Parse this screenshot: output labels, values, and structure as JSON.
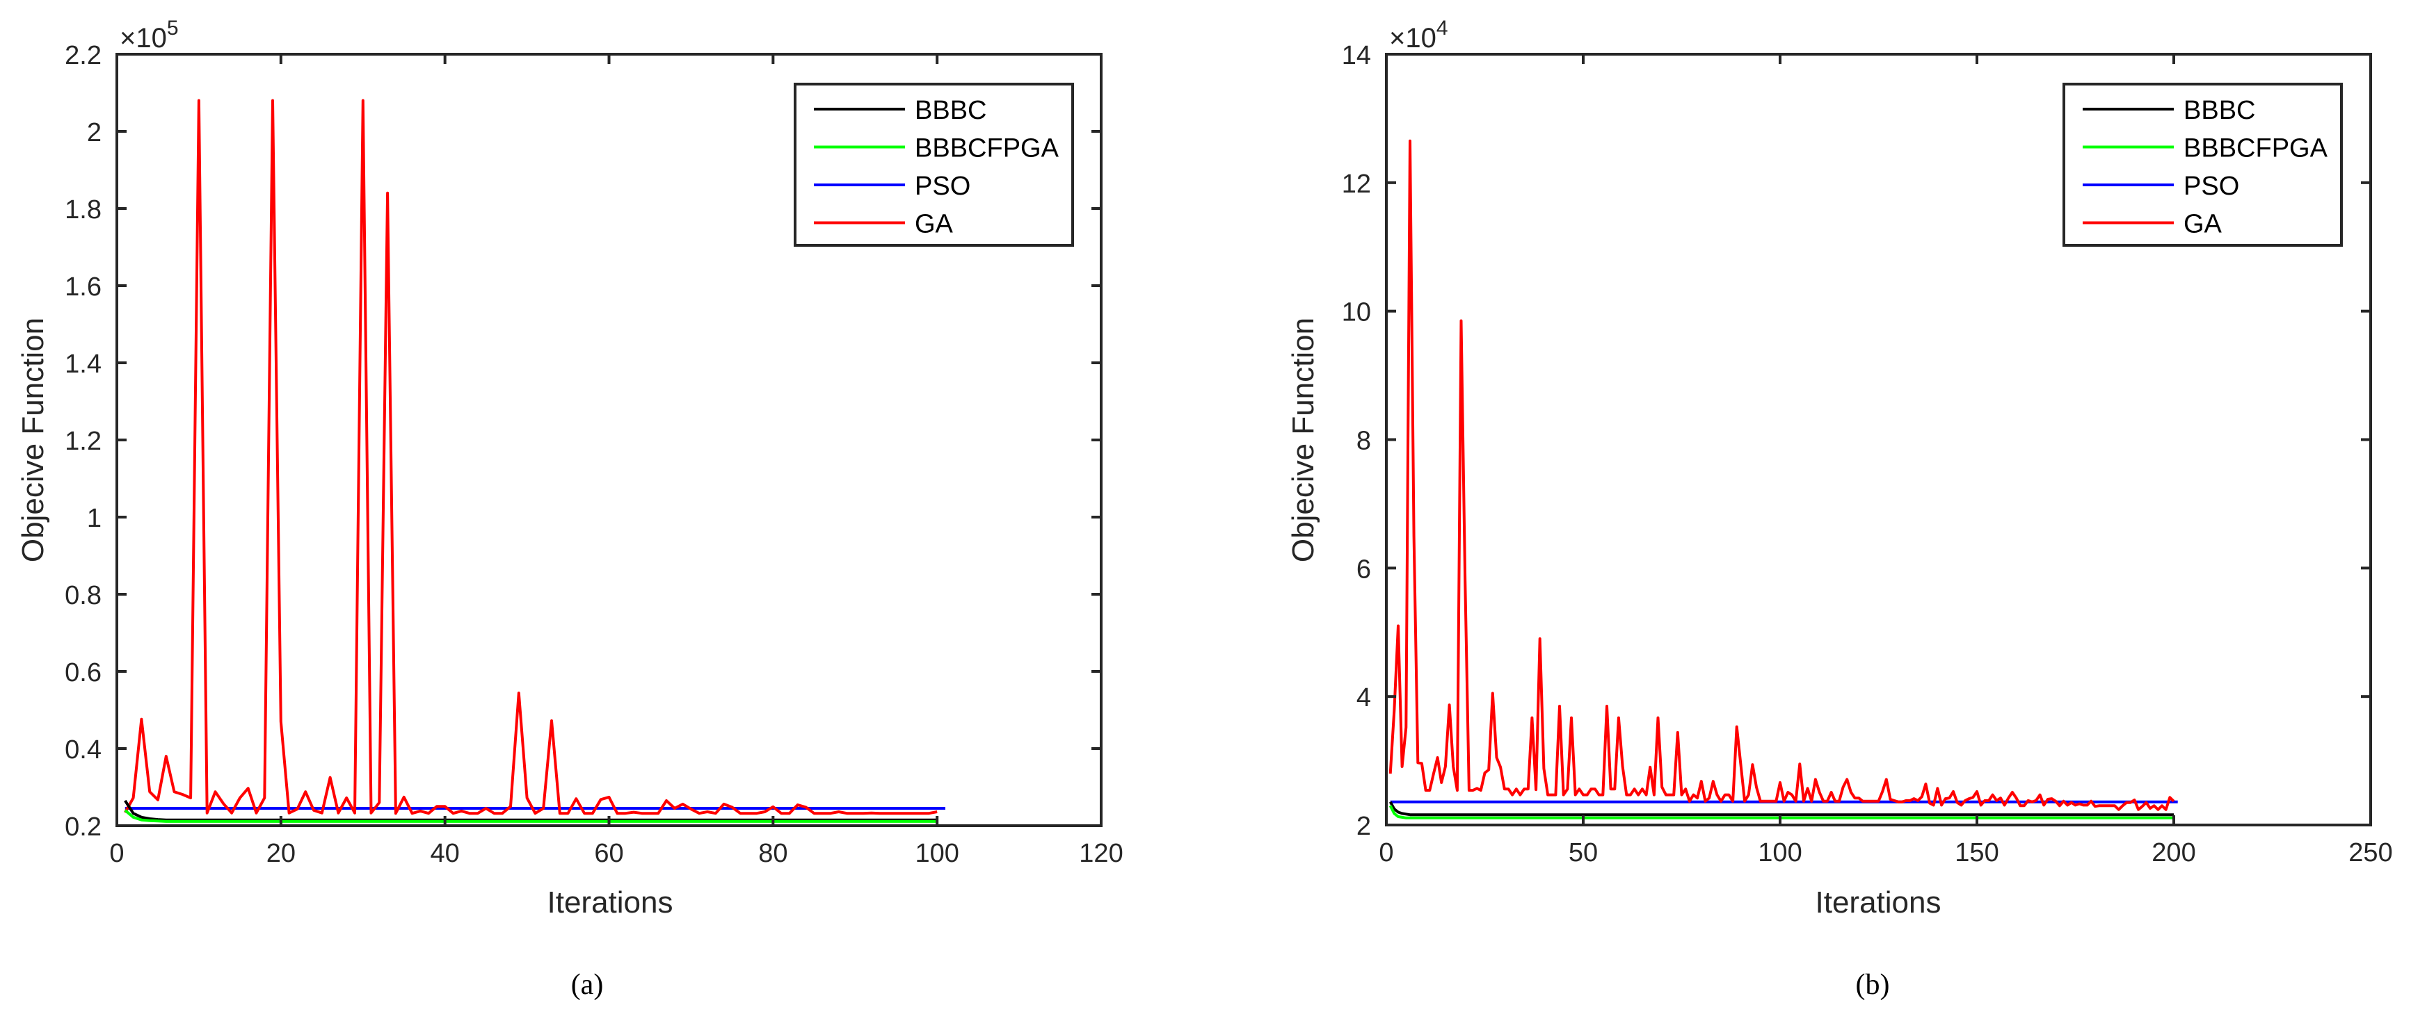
{
  "figure": {
    "captions": [
      "(a)",
      "(b)"
    ]
  },
  "chart_data": [
    {
      "type": "line",
      "panel_label": "(a)",
      "title": "",
      "xlabel": "Iterations",
      "ylabel": "Objecive Function",
      "y_exponent_label": "×10",
      "y_exponent": "5",
      "xlim": [
        0,
        120
      ],
      "ylim": [
        0.2,
        2.2
      ],
      "xticks": [
        0,
        20,
        40,
        60,
        80,
        100,
        120
      ],
      "yticks": [
        0.2,
        0.4,
        0.6,
        0.8,
        1,
        1.2,
        1.4,
        1.6,
        1.8,
        2,
        2.2
      ],
      "ytick_labels": [
        "0.2",
        "0.4",
        "0.6",
        "0.8",
        "1",
        "1.2",
        "1.4",
        "1.6",
        "1.8",
        "2",
        "2.2"
      ],
      "grid": false,
      "legend_position": "northeast",
      "series": [
        {
          "name": "BBBC",
          "color": "#000000",
          "x_start": 1,
          "values": [
            0.265,
            0.232,
            0.222,
            0.218,
            0.216,
            0.215,
            0.215,
            0.215,
            0.215,
            0.215,
            0.215,
            0.215,
            0.215,
            0.215,
            0.215,
            0.215,
            0.215,
            0.215,
            0.215,
            0.215,
            0.215,
            0.215,
            0.215,
            0.215,
            0.215,
            0.215,
            0.215,
            0.215,
            0.215,
            0.215,
            0.215,
            0.215,
            0.215,
            0.215,
            0.215,
            0.215,
            0.215,
            0.215,
            0.215,
            0.215,
            0.215,
            0.215,
            0.215,
            0.215,
            0.215,
            0.215,
            0.215,
            0.215,
            0.215,
            0.215,
            0.215,
            0.215,
            0.215,
            0.215,
            0.215,
            0.215,
            0.215,
            0.215,
            0.215,
            0.215,
            0.215,
            0.215,
            0.215,
            0.215,
            0.215,
            0.215,
            0.215,
            0.215,
            0.215,
            0.215,
            0.215,
            0.215,
            0.215,
            0.215,
            0.215,
            0.215,
            0.215,
            0.215,
            0.215,
            0.215,
            0.215,
            0.215,
            0.215,
            0.215,
            0.215,
            0.215,
            0.215,
            0.215,
            0.215,
            0.215,
            0.215,
            0.215,
            0.215,
            0.215,
            0.215,
            0.215,
            0.215,
            0.215,
            0.215,
            0.215
          ]
        },
        {
          "name": "BBBCFPGA",
          "color": "#00ff00",
          "x_start": 1,
          "values": [
            0.24,
            0.222,
            0.215,
            0.213,
            0.212,
            0.211,
            0.211,
            0.211,
            0.211,
            0.211,
            0.211,
            0.211,
            0.211,
            0.211,
            0.211,
            0.211,
            0.211,
            0.211,
            0.211,
            0.211,
            0.211,
            0.211,
            0.211,
            0.211,
            0.211,
            0.211,
            0.211,
            0.211,
            0.211,
            0.211,
            0.211,
            0.211,
            0.211,
            0.211,
            0.211,
            0.211,
            0.211,
            0.211,
            0.211,
            0.211,
            0.211,
            0.211,
            0.211,
            0.211,
            0.211,
            0.211,
            0.211,
            0.211,
            0.211,
            0.211,
            0.211,
            0.211,
            0.211,
            0.211,
            0.211,
            0.211,
            0.211,
            0.211,
            0.211,
            0.211,
            0.211,
            0.211,
            0.211,
            0.211,
            0.211,
            0.211,
            0.211,
            0.211,
            0.211,
            0.211,
            0.211,
            0.211,
            0.211,
            0.211,
            0.211,
            0.211,
            0.211,
            0.211,
            0.211,
            0.211,
            0.211,
            0.211,
            0.211,
            0.211,
            0.211,
            0.211,
            0.211,
            0.211,
            0.211,
            0.211,
            0.211,
            0.211,
            0.211,
            0.211,
            0.211,
            0.211,
            0.211,
            0.211,
            0.211,
            0.211
          ]
        },
        {
          "name": "PSO",
          "color": "#0000ff",
          "x_start": 1,
          "x_end": 101,
          "constant": 0.245
        },
        {
          "name": "GA",
          "color": "#ff0000",
          "x_start": 1,
          "values": [
            0.234,
            0.272,
            0.476,
            0.288,
            0.267,
            0.38,
            0.288,
            0.281,
            0.272,
            2.08,
            0.233,
            0.288,
            0.257,
            0.233,
            0.272,
            0.297,
            0.233,
            0.272,
            2.08,
            0.47,
            0.233,
            0.243,
            0.288,
            0.24,
            0.233,
            0.325,
            0.233,
            0.272,
            0.233,
            2.08,
            0.233,
            0.26,
            1.84,
            0.232,
            0.274,
            0.232,
            0.238,
            0.232,
            0.25,
            0.25,
            0.232,
            0.238,
            0.232,
            0.232,
            0.245,
            0.232,
            0.232,
            0.25,
            0.544,
            0.272,
            0.232,
            0.245,
            0.472,
            0.232,
            0.232,
            0.27,
            0.232,
            0.232,
            0.268,
            0.274,
            0.232,
            0.232,
            0.235,
            0.232,
            0.232,
            0.232,
            0.265,
            0.245,
            0.256,
            0.243,
            0.232,
            0.236,
            0.232,
            0.256,
            0.248,
            0.232,
            0.232,
            0.232,
            0.236,
            0.249,
            0.232,
            0.232,
            0.254,
            0.248,
            0.232,
            0.232,
            0.232,
            0.236,
            0.232,
            0.232,
            0.232,
            0.233,
            0.232,
            0.232,
            0.232,
            0.232,
            0.232,
            0.232,
            0.232,
            0.236
          ]
        }
      ]
    },
    {
      "type": "line",
      "panel_label": "(b)",
      "title": "",
      "xlabel": "Iterations",
      "ylabel": "Objecive Function",
      "y_exponent_label": "×10",
      "y_exponent": "4",
      "xlim": [
        0,
        250
      ],
      "ylim": [
        2,
        14
      ],
      "xticks": [
        0,
        50,
        100,
        150,
        200,
        250
      ],
      "yticks": [
        2,
        4,
        6,
        8,
        10,
        12,
        14
      ],
      "ytick_labels": [
        "2",
        "4",
        "6",
        "8",
        "10",
        "12",
        "14"
      ],
      "grid": false,
      "legend_position": "northeast",
      "series": [
        {
          "name": "BBBC",
          "color": "#000000",
          "x_start": 1,
          "x_end": 200,
          "head": [
            2.36,
            2.25,
            2.2,
            2.18,
            2.17
          ],
          "constant": 2.16
        },
        {
          "name": "BBBCFPGA",
          "color": "#00ff00",
          "x_start": 1,
          "x_end": 200,
          "head": [
            2.3,
            2.18,
            2.13,
            2.12
          ],
          "constant": 2.11
        },
        {
          "name": "PSO",
          "color": "#0000ff",
          "x_start": 1,
          "x_end": 201,
          "constant": 2.36
        },
        {
          "name": "GA",
          "color": "#ff0000",
          "x_start": 1,
          "values": [
            2.8,
            3.78,
            5.1,
            2.91,
            3.52,
            12.65,
            6.5,
            2.97,
            2.96,
            2.54,
            2.54,
            2.8,
            3.05,
            2.66,
            2.91,
            3.87,
            2.91,
            2.54,
            9.85,
            5.8,
            2.54,
            2.54,
            2.57,
            2.54,
            2.81,
            2.86,
            4.05,
            3.05,
            2.9,
            2.56,
            2.56,
            2.47,
            2.56,
            2.47,
            2.56,
            2.56,
            3.67,
            2.55,
            4.9,
            2.88,
            2.47,
            2.47,
            2.47,
            3.85,
            2.47,
            2.56,
            3.67,
            2.47,
            2.56,
            2.47,
            2.47,
            2.56,
            2.56,
            2.47,
            2.47,
            3.85,
            2.56,
            2.56,
            3.67,
            2.91,
            2.47,
            2.47,
            2.56,
            2.47,
            2.56,
            2.47,
            2.9,
            2.47,
            3.67,
            2.59,
            2.47,
            2.47,
            2.47,
            3.44,
            2.47,
            2.56,
            2.37,
            2.47,
            2.42,
            2.68,
            2.37,
            2.42,
            2.68,
            2.47,
            2.37,
            2.47,
            2.47,
            2.37,
            3.53,
            2.95,
            2.37,
            2.47,
            2.94,
            2.59,
            2.37,
            2.37,
            2.37,
            2.37,
            2.37,
            2.66,
            2.37,
            2.51,
            2.47,
            2.37,
            2.95,
            2.37,
            2.57,
            2.37,
            2.71,
            2.51,
            2.37,
            2.37,
            2.51,
            2.37,
            2.37,
            2.59,
            2.71,
            2.51,
            2.42,
            2.42,
            2.37,
            2.37,
            2.37,
            2.37,
            2.37,
            2.52,
            2.71,
            2.4,
            2.38,
            2.36,
            2.36,
            2.38,
            2.38,
            2.41,
            2.38,
            2.44,
            2.64,
            2.34,
            2.31,
            2.57,
            2.31,
            2.41,
            2.42,
            2.52,
            2.35,
            2.31,
            2.38,
            2.41,
            2.43,
            2.52,
            2.31,
            2.38,
            2.38,
            2.47,
            2.38,
            2.42,
            2.31,
            2.42,
            2.51,
            2.42,
            2.3,
            2.3,
            2.38,
            2.36,
            2.38,
            2.47,
            2.31,
            2.4,
            2.41,
            2.37,
            2.3,
            2.37,
            2.31,
            2.35,
            2.31,
            2.33,
            2.31,
            2.31,
            2.37,
            2.29,
            2.3,
            2.3,
            2.3,
            2.3,
            2.3,
            2.24,
            2.3,
            2.35,
            2.35,
            2.39,
            2.24,
            2.29,
            2.35,
            2.26,
            2.3,
            2.24,
            2.3,
            2.24,
            2.43,
            2.37
          ]
        }
      ]
    }
  ]
}
